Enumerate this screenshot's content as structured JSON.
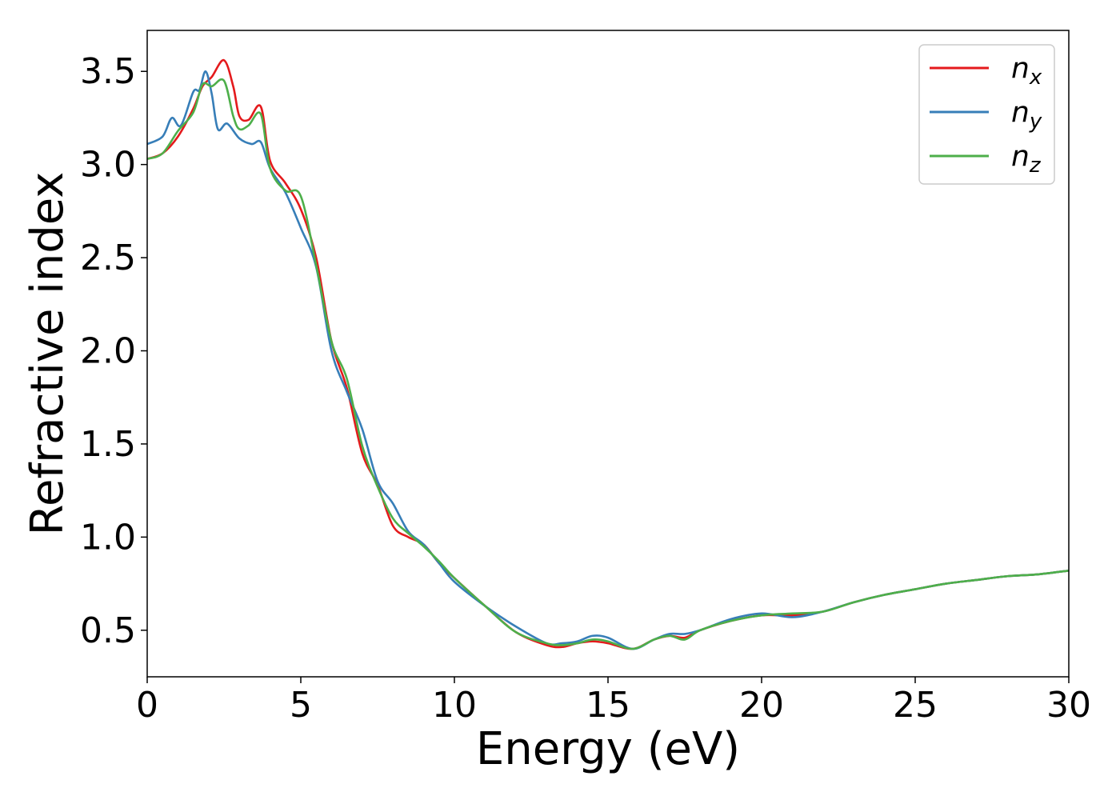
{
  "chart_data": {
    "type": "line",
    "title": "",
    "xlabel": "Energy (eV)",
    "ylabel": "Refractive index",
    "xlim": [
      0,
      30
    ],
    "ylim": [
      0.25,
      3.72
    ],
    "xticks": [
      0,
      5,
      10,
      15,
      20,
      25,
      30
    ],
    "yticks": [
      0.5,
      1.0,
      1.5,
      2.0,
      2.5,
      3.0,
      3.5
    ],
    "xtick_labels": [
      "0",
      "5",
      "10",
      "15",
      "20",
      "25",
      "30"
    ],
    "ytick_labels": [
      "0.5",
      "1.0",
      "1.5",
      "2.0",
      "2.5",
      "3.0",
      "3.5"
    ],
    "grid": false,
    "legend_position": "top-right",
    "series": [
      {
        "name": "n_x",
        "name_base": "n",
        "name_sub": "x",
        "color": "#e41a1c",
        "points": [
          [
            0.0,
            3.03
          ],
          [
            0.5,
            3.06
          ],
          [
            1.0,
            3.15
          ],
          [
            1.5,
            3.3
          ],
          [
            1.8,
            3.42
          ],
          [
            2.1,
            3.47
          ],
          [
            2.5,
            3.56
          ],
          [
            2.8,
            3.42
          ],
          [
            3.0,
            3.26
          ],
          [
            3.3,
            3.24
          ],
          [
            3.7,
            3.31
          ],
          [
            4.0,
            3.02
          ],
          [
            4.5,
            2.9
          ],
          [
            5.0,
            2.76
          ],
          [
            5.5,
            2.5
          ],
          [
            6.0,
            2.05
          ],
          [
            6.5,
            1.8
          ],
          [
            7.0,
            1.45
          ],
          [
            7.5,
            1.28
          ],
          [
            8.0,
            1.06
          ],
          [
            8.5,
            1.0
          ],
          [
            9.0,
            0.96
          ],
          [
            9.5,
            0.86
          ],
          [
            10.0,
            0.78
          ],
          [
            11.0,
            0.63
          ],
          [
            12.0,
            0.49
          ],
          [
            13.0,
            0.42
          ],
          [
            13.5,
            0.41
          ],
          [
            14.0,
            0.43
          ],
          [
            14.5,
            0.44
          ],
          [
            15.0,
            0.43
          ],
          [
            15.8,
            0.4
          ],
          [
            16.5,
            0.45
          ],
          [
            17.0,
            0.47
          ],
          [
            17.5,
            0.46
          ],
          [
            18.0,
            0.5
          ],
          [
            19.0,
            0.55
          ],
          [
            20.0,
            0.58
          ],
          [
            21.0,
            0.58
          ],
          [
            22.0,
            0.6
          ],
          [
            23.0,
            0.65
          ],
          [
            24.0,
            0.69
          ],
          [
            25.0,
            0.72
          ],
          [
            26.0,
            0.75
          ],
          [
            27.0,
            0.77
          ],
          [
            28.0,
            0.79
          ],
          [
            29.0,
            0.8
          ],
          [
            30.0,
            0.82
          ]
        ]
      },
      {
        "name": "n_y",
        "name_base": "n",
        "name_sub": "y",
        "color": "#377eb8",
        "points": [
          [
            0.0,
            3.11
          ],
          [
            0.5,
            3.15
          ],
          [
            0.8,
            3.25
          ],
          [
            1.1,
            3.21
          ],
          [
            1.5,
            3.39
          ],
          [
            1.7,
            3.4
          ],
          [
            1.9,
            3.5
          ],
          [
            2.1,
            3.38
          ],
          [
            2.3,
            3.19
          ],
          [
            2.6,
            3.22
          ],
          [
            3.0,
            3.14
          ],
          [
            3.4,
            3.11
          ],
          [
            3.7,
            3.12
          ],
          [
            4.0,
            2.98
          ],
          [
            4.5,
            2.85
          ],
          [
            5.0,
            2.66
          ],
          [
            5.5,
            2.45
          ],
          [
            6.0,
            2.0
          ],
          [
            6.5,
            1.78
          ],
          [
            7.0,
            1.58
          ],
          [
            7.5,
            1.3
          ],
          [
            8.0,
            1.18
          ],
          [
            8.5,
            1.03
          ],
          [
            9.0,
            0.96
          ],
          [
            9.5,
            0.86
          ],
          [
            10.0,
            0.76
          ],
          [
            11.0,
            0.63
          ],
          [
            12.0,
            0.52
          ],
          [
            13.0,
            0.43
          ],
          [
            13.5,
            0.43
          ],
          [
            14.0,
            0.44
          ],
          [
            14.5,
            0.47
          ],
          [
            15.0,
            0.46
          ],
          [
            15.8,
            0.4
          ],
          [
            16.5,
            0.45
          ],
          [
            17.0,
            0.48
          ],
          [
            17.5,
            0.48
          ],
          [
            18.0,
            0.5
          ],
          [
            19.0,
            0.56
          ],
          [
            20.0,
            0.59
          ],
          [
            21.0,
            0.57
          ],
          [
            22.0,
            0.6
          ],
          [
            23.0,
            0.65
          ],
          [
            24.0,
            0.69
          ],
          [
            25.0,
            0.72
          ],
          [
            26.0,
            0.75
          ],
          [
            27.0,
            0.77
          ],
          [
            28.0,
            0.79
          ],
          [
            29.0,
            0.8
          ],
          [
            30.0,
            0.82
          ]
        ]
      },
      {
        "name": "n_z",
        "name_base": "n",
        "name_sub": "z",
        "color": "#4daf4a",
        "points": [
          [
            0.0,
            3.03
          ],
          [
            0.5,
            3.06
          ],
          [
            1.0,
            3.18
          ],
          [
            1.5,
            3.28
          ],
          [
            1.8,
            3.43
          ],
          [
            2.1,
            3.42
          ],
          [
            2.5,
            3.45
          ],
          [
            2.8,
            3.26
          ],
          [
            3.0,
            3.19
          ],
          [
            3.3,
            3.21
          ],
          [
            3.7,
            3.27
          ],
          [
            4.0,
            2.98
          ],
          [
            4.5,
            2.86
          ],
          [
            5.0,
            2.83
          ],
          [
            5.5,
            2.46
          ],
          [
            6.0,
            2.05
          ],
          [
            6.5,
            1.85
          ],
          [
            7.0,
            1.49
          ],
          [
            7.5,
            1.27
          ],
          [
            8.0,
            1.1
          ],
          [
            8.5,
            1.02
          ],
          [
            9.0,
            0.95
          ],
          [
            9.5,
            0.87
          ],
          [
            10.0,
            0.78
          ],
          [
            11.0,
            0.63
          ],
          [
            12.0,
            0.49
          ],
          [
            13.0,
            0.43
          ],
          [
            13.5,
            0.42
          ],
          [
            14.0,
            0.43
          ],
          [
            14.5,
            0.45
          ],
          [
            15.0,
            0.44
          ],
          [
            15.8,
            0.4
          ],
          [
            16.5,
            0.45
          ],
          [
            17.0,
            0.47
          ],
          [
            17.5,
            0.45
          ],
          [
            18.0,
            0.5
          ],
          [
            19.0,
            0.55
          ],
          [
            20.0,
            0.58
          ],
          [
            21.0,
            0.59
          ],
          [
            22.0,
            0.6
          ],
          [
            23.0,
            0.65
          ],
          [
            24.0,
            0.69
          ],
          [
            25.0,
            0.72
          ],
          [
            26.0,
            0.75
          ],
          [
            27.0,
            0.77
          ],
          [
            28.0,
            0.79
          ],
          [
            29.0,
            0.8
          ],
          [
            30.0,
            0.82
          ]
        ]
      }
    ]
  }
}
